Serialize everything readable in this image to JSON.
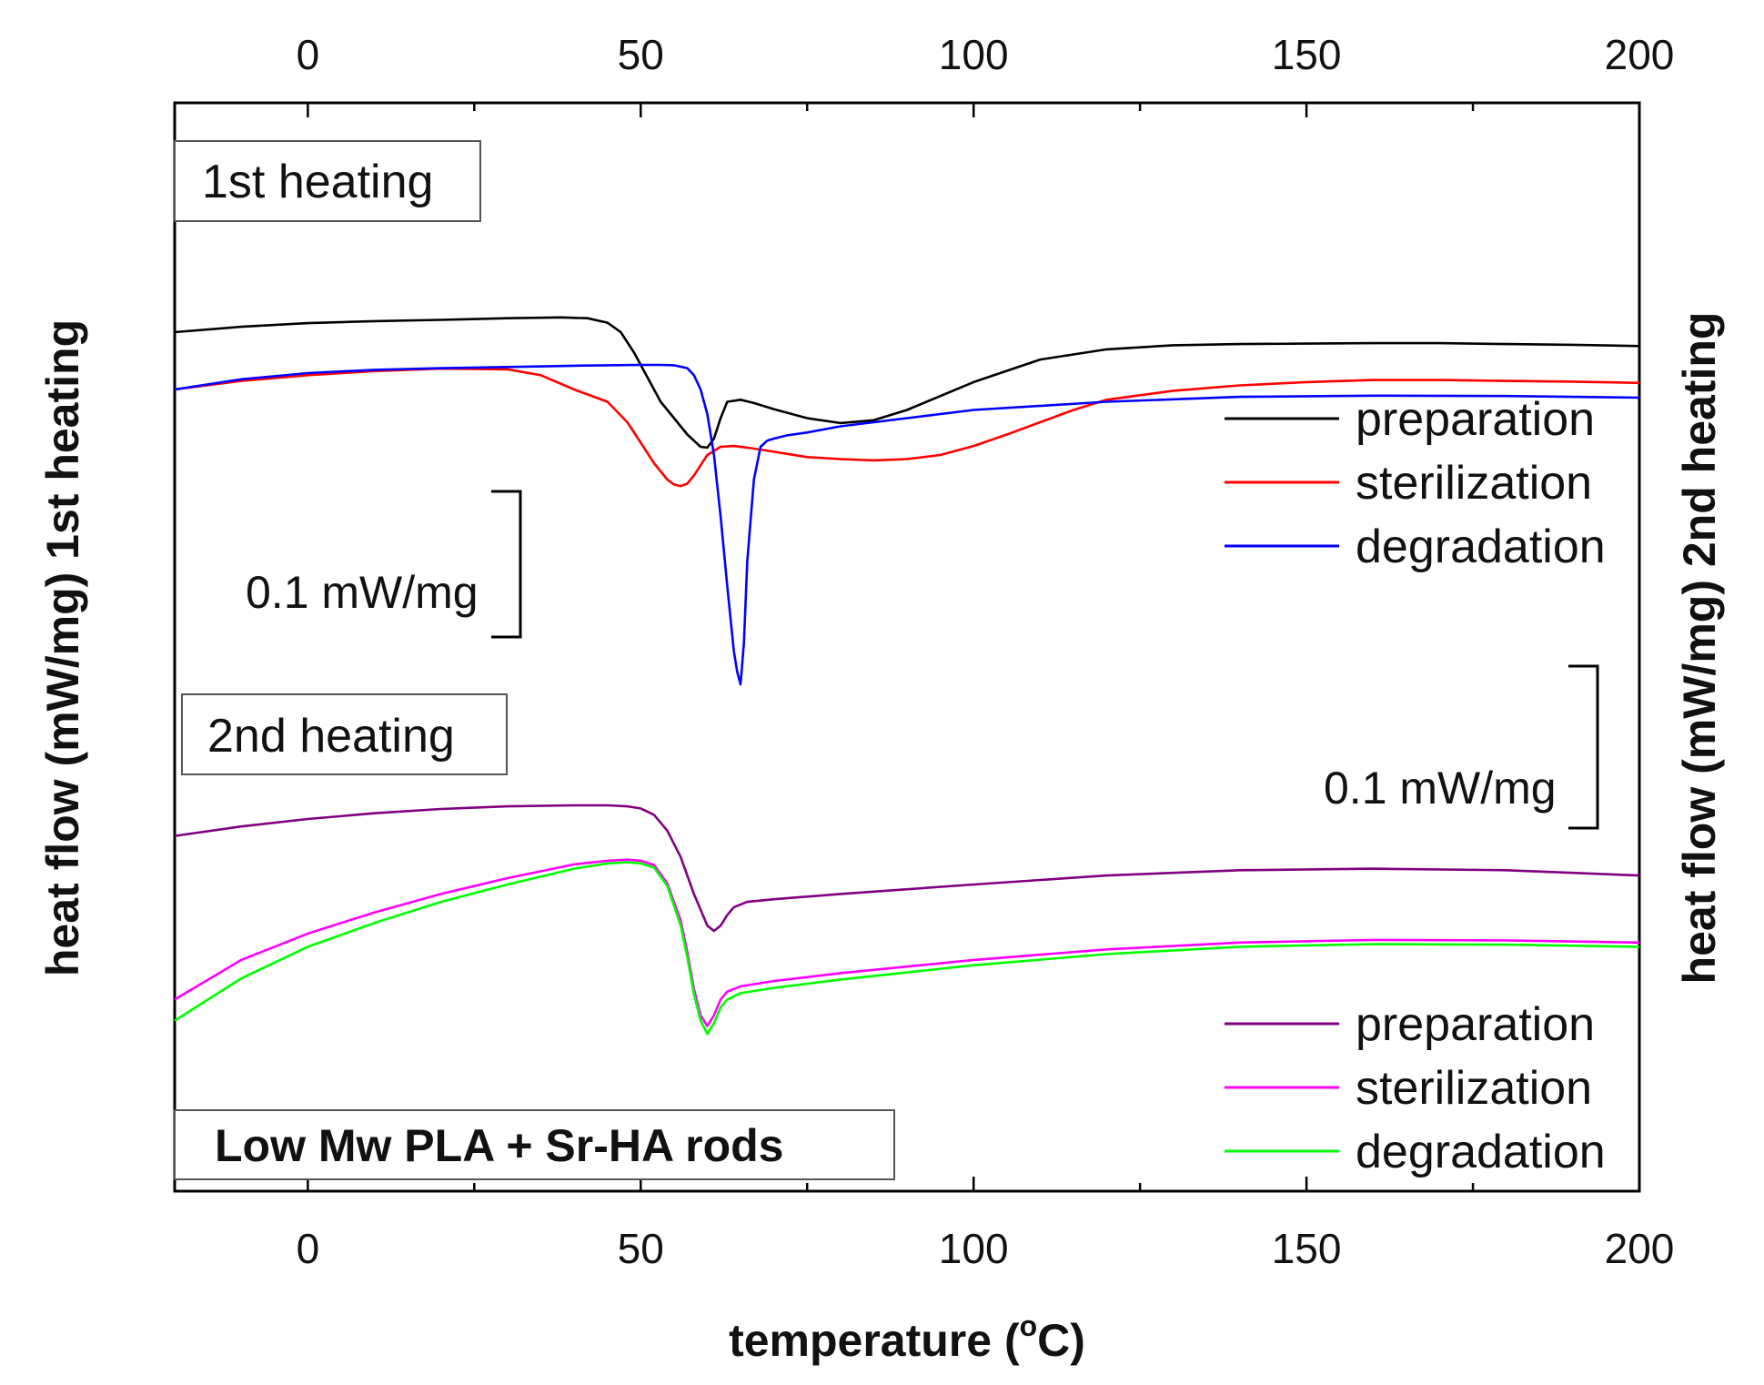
{
  "chart_data": {
    "type": "line",
    "xlabel": "temperature (°C)",
    "xlabel_main": "temperature (",
    "xlabel_sup": "o",
    "xlabel_unit": "C)",
    "ylabel_left": "heat flow (mW/mg) 1st heating",
    "ylabel_right": "heat flow (mW/mg) 2nd heating",
    "xlim": [
      -20,
      200
    ],
    "xticks": [
      0,
      50,
      100,
      150,
      200
    ],
    "xtick_labels": [
      "0",
      "50",
      "100",
      "150",
      "200"
    ],
    "grid": false,
    "annotations": {
      "box_first": "1st heating",
      "box_second": "2nd heating",
      "box_sample": "Low Mw PLA + Sr-HA rods",
      "scale_first": "0.1 mW/mg",
      "scale_second": "0.1 mW/mg"
    },
    "y_units": "arbitrary, offset",
    "groups": [
      {
        "name": "1st heating",
        "legend_position": "middle-right",
        "series": [
          {
            "name": "preparation",
            "color": "#000000",
            "x": [
              -20,
              -10,
              0,
              10,
              20,
              30,
              38,
              42,
              45,
              47,
              49,
              51,
              53,
              55,
              57,
              59,
              60,
              61,
              62,
              63,
              65,
              67,
              70,
              75,
              80,
              85,
              90,
              100,
              110,
              120,
              130,
              140,
              150,
              160,
              170,
              180,
              190,
              200
            ],
            "y": [
              2.0,
              2.13,
              2.22,
              2.27,
              2.3,
              2.34,
              2.36,
              2.34,
              2.23,
              2.0,
              1.5,
              0.9,
              0.3,
              -0.1,
              -0.5,
              -0.8,
              -0.82,
              -0.6,
              -0.1,
              0.3,
              0.35,
              0.27,
              0.12,
              -0.1,
              -0.22,
              -0.15,
              0.1,
              0.78,
              1.33,
              1.58,
              1.68,
              1.71,
              1.72,
              1.73,
              1.73,
              1.71,
              1.69,
              1.66
            ]
          },
          {
            "name": "sterilization",
            "color": "#ff0000",
            "x": [
              -20,
              -10,
              0,
              10,
              20,
              30,
              35,
              40,
              45,
              48,
              50,
              52,
              54,
              55,
              56,
              57,
              58,
              60,
              62,
              64,
              66,
              70,
              75,
              80,
              85,
              90,
              95,
              100,
              105,
              110,
              115,
              120,
              130,
              140,
              150,
              160,
              170,
              180,
              190,
              200
            ],
            "y": [
              0.6,
              0.81,
              0.95,
              1.05,
              1.11,
              1.09,
              0.95,
              0.6,
              0.3,
              -0.2,
              -0.7,
              -1.2,
              -1.6,
              -1.72,
              -1.76,
              -1.7,
              -1.5,
              -1.0,
              -0.8,
              -0.78,
              -0.82,
              -0.92,
              -1.05,
              -1.1,
              -1.13,
              -1.1,
              -1.0,
              -0.78,
              -0.5,
              -0.2,
              0.1,
              0.35,
              0.57,
              0.7,
              0.78,
              0.83,
              0.83,
              0.81,
              0.79,
              0.76
            ]
          },
          {
            "name": "degradation",
            "color": "#0000ff",
            "x": [
              -20,
              -10,
              0,
              10,
              20,
              30,
              40,
              50,
              53,
              55,
              57,
              58,
              59,
              60,
              61,
              62,
              63,
              64,
              64.5,
              65,
              65.5,
              66,
              67,
              68,
              69,
              70,
              72,
              75,
              80,
              90,
              100,
              120,
              140,
              160,
              180,
              200
            ],
            "y": [
              0.6,
              0.85,
              1.0,
              1.08,
              1.12,
              1.15,
              1.18,
              1.2,
              1.2,
              1.19,
              1.12,
              0.95,
              0.6,
              0.0,
              -1.0,
              -2.5,
              -4.2,
              -5.8,
              -6.3,
              -6.6,
              -5.6,
              -3.6,
              -1.6,
              -0.8,
              -0.65,
              -0.6,
              -0.52,
              -0.45,
              -0.3,
              -0.1,
              0.1,
              0.3,
              0.42,
              0.45,
              0.44,
              0.4
            ]
          }
        ]
      },
      {
        "name": "2nd heating",
        "legend_position": "bottom-right",
        "series": [
          {
            "name": "preparation",
            "color": "#800080",
            "x": [
              -20,
              -10,
              0,
              10,
              20,
              30,
              40,
              45,
              48,
              50,
              52,
              54,
              56,
              58,
              60,
              61,
              62,
              63,
              64,
              66,
              70,
              80,
              100,
              120,
              140,
              160,
              180,
              200
            ],
            "y": [
              3.3,
              3.48,
              3.62,
              3.73,
              3.81,
              3.86,
              3.88,
              3.88,
              3.86,
              3.82,
              3.7,
              3.4,
              2.9,
              2.2,
              1.6,
              1.5,
              1.6,
              1.8,
              1.95,
              2.05,
              2.1,
              2.2,
              2.38,
              2.55,
              2.65,
              2.68,
              2.65,
              2.55
            ]
          },
          {
            "name": "sterilization",
            "color": "#ff00ff",
            "x": [
              -20,
              -10,
              0,
              10,
              20,
              30,
              40,
              45,
              48,
              50,
              52,
              54,
              56,
              57,
              58,
              59,
              60,
              61,
              62,
              63,
              65,
              70,
              80,
              100,
              120,
              140,
              160,
              180,
              200
            ],
            "y": [
              0.2,
              0.95,
              1.45,
              1.85,
              2.2,
              2.5,
              2.76,
              2.83,
              2.85,
              2.83,
              2.75,
              2.4,
              1.7,
              1.1,
              0.4,
              -0.1,
              -0.3,
              -0.1,
              0.2,
              0.35,
              0.45,
              0.55,
              0.7,
              0.95,
              1.15,
              1.28,
              1.33,
              1.32,
              1.28
            ]
          },
          {
            "name": "degradation",
            "color": "#00ff00",
            "x": [
              -20,
              -10,
              0,
              10,
              20,
              30,
              40,
              45,
              48,
              50,
              52,
              54,
              56,
              57,
              58,
              59,
              60,
              61,
              62,
              63,
              65,
              70,
              80,
              100,
              120,
              140,
              160,
              180,
              200
            ],
            "y": [
              -0.2,
              0.6,
              1.2,
              1.65,
              2.05,
              2.38,
              2.68,
              2.78,
              2.8,
              2.78,
              2.7,
              2.35,
              1.6,
              1.0,
              0.3,
              -0.2,
              -0.45,
              -0.25,
              0.05,
              0.2,
              0.32,
              0.42,
              0.58,
              0.85,
              1.06,
              1.2,
              1.25,
              1.24,
              1.2
            ]
          }
        ]
      }
    ]
  }
}
